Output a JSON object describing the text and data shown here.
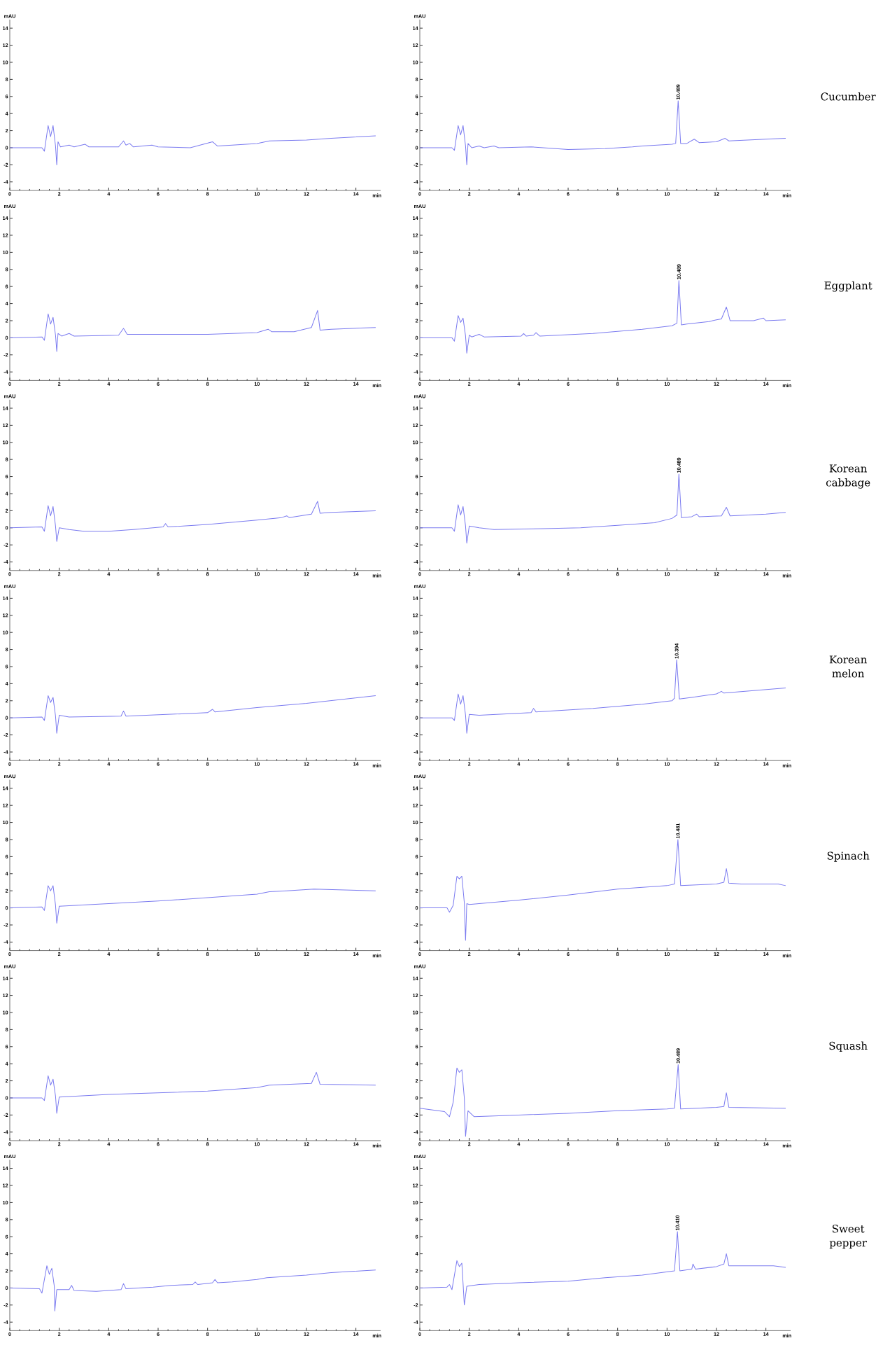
{
  "chart_data": [
    {
      "type": "line",
      "xlabel": "min",
      "ylabel": "mAU",
      "xlim": [
        0,
        15
      ],
      "ylim": [
        -5,
        15
      ],
      "xticks": [
        0,
        2,
        4,
        6,
        8,
        10,
        12,
        14
      ],
      "yticks": [
        -4,
        -2,
        0,
        2,
        4,
        6,
        8,
        10,
        12,
        14
      ],
      "x": [
        0,
        1.3,
        1.4,
        1.55,
        1.65,
        1.75,
        1.85,
        1.9,
        1.95,
        2.05,
        2.4,
        2.6,
        3.05,
        3.2,
        4.4,
        4.6,
        4.7,
        4.85,
        5,
        5.75,
        6,
        7.3,
        8.2,
        8.4,
        9,
        10,
        10.5,
        12,
        13,
        14.8
      ],
      "series": [
        {
          "color": "#7b7bf0",
          "values": [
            0,
            0,
            -0.4,
            2.6,
            1.3,
            2.6,
            0.2,
            -2,
            0.7,
            0.1,
            0.3,
            0.1,
            0.4,
            0.1,
            0.1,
            0.8,
            0.3,
            0.5,
            0.1,
            0.3,
            0.1,
            0,
            0.7,
            0.2,
            0.3,
            0.5,
            0.8,
            0.9,
            1.1,
            1.4
          ]
        }
      ]
    },
    {
      "type": "line",
      "xlabel": "min",
      "ylabel": "mAU",
      "xlim": [
        0,
        15
      ],
      "ylim": [
        -5,
        15
      ],
      "xticks": [
        0,
        2,
        4,
        6,
        8,
        10,
        12,
        14
      ],
      "yticks": [
        -4,
        -2,
        0,
        2,
        4,
        6,
        8,
        10,
        12,
        14
      ],
      "x": [
        0,
        1.3,
        1.4,
        1.55,
        1.65,
        1.75,
        1.85,
        1.9,
        1.95,
        2.1,
        2.4,
        2.6,
        3,
        3.2,
        4.5,
        6,
        7.5,
        8.6,
        9,
        10.2,
        10.35,
        10.45,
        10.55,
        10.8,
        11.1,
        11.3,
        12,
        12.35,
        12.5,
        14,
        14.8
      ],
      "series": [
        {
          "color": "#7b7bf0",
          "values": [
            0,
            0,
            -0.3,
            2.6,
            1.5,
            2.6,
            0.2,
            -2,
            0.5,
            0,
            0.2,
            0,
            0.2,
            0,
            0.1,
            -0.2,
            -0.1,
            0.1,
            0.2,
            0.4,
            0.5,
            5.5,
            0.5,
            0.5,
            1,
            0.6,
            0.7,
            1.1,
            0.8,
            1,
            1.1
          ]
        }
      ],
      "annotations": [
        {
          "text": "10.489",
          "x": 10.45,
          "y": 5.5
        },
        "Cucumber"
      ]
    },
    {
      "type": "line",
      "xlabel": "min",
      "ylabel": "mAU",
      "xlim": [
        0,
        15
      ],
      "ylim": [
        -5,
        15
      ],
      "xticks": [
        0,
        2,
        4,
        6,
        8,
        10,
        12,
        14
      ],
      "yticks": [
        -4,
        -2,
        0,
        2,
        4,
        6,
        8,
        10,
        12,
        14
      ],
      "x": [
        0,
        1.3,
        1.4,
        1.55,
        1.65,
        1.75,
        1.85,
        1.9,
        1.95,
        2.1,
        2.4,
        2.6,
        4.4,
        4.6,
        4.75,
        8,
        10,
        10.45,
        10.6,
        11.5,
        12.2,
        12.45,
        12.55,
        13,
        14.8
      ],
      "series": [
        {
          "color": "#7b7bf0",
          "values": [
            0,
            0.1,
            -0.3,
            2.8,
            1.6,
            2.4,
            0.3,
            -1.6,
            0.5,
            0.2,
            0.5,
            0.2,
            0.3,
            1.1,
            0.4,
            0.4,
            0.6,
            1,
            0.7,
            0.7,
            1.2,
            3.2,
            0.9,
            1,
            1.2
          ]
        }
      ]
    },
    {
      "type": "line",
      "xlabel": "min",
      "ylabel": "mAU",
      "xlim": [
        0,
        15
      ],
      "ylim": [
        -5,
        15
      ],
      "xticks": [
        0,
        2,
        4,
        6,
        8,
        10,
        12,
        14
      ],
      "yticks": [
        -4,
        -2,
        0,
        2,
        4,
        6,
        8,
        10,
        12,
        14
      ],
      "x": [
        0,
        1.3,
        1.4,
        1.55,
        1.65,
        1.75,
        1.85,
        1.9,
        2,
        2.1,
        2.4,
        2.6,
        4.1,
        4.2,
        4.3,
        4.6,
        4.7,
        4.85,
        7,
        9,
        10.2,
        10.4,
        10.48,
        10.58,
        10.8,
        11.7,
        12,
        12.2,
        12.4,
        12.55,
        13.5,
        13.9,
        14,
        14.8
      ],
      "series": [
        {
          "color": "#7b7bf0",
          "values": [
            0,
            0,
            -0.4,
            2.6,
            1.8,
            2.3,
            0.2,
            -1.8,
            0.3,
            0.1,
            0.4,
            0.1,
            0.2,
            0.5,
            0.2,
            0.3,
            0.6,
            0.2,
            0.5,
            1,
            1.4,
            1.7,
            6.7,
            1.5,
            1.6,
            1.9,
            2.1,
            2.2,
            3.6,
            2,
            2,
            2.3,
            2,
            2.1
          ]
        }
      ],
      "annotations": [
        {
          "text": "10.489",
          "x": 10.48,
          "y": 6.7
        },
        "Eggplant"
      ]
    },
    {
      "type": "line",
      "xlabel": "min",
      "ylabel": "mAU",
      "xlim": [
        0,
        15
      ],
      "ylim": [
        -5,
        15
      ],
      "xticks": [
        0,
        2,
        4,
        6,
        8,
        10,
        12,
        14
      ],
      "yticks": [
        -4,
        -2,
        0,
        2,
        4,
        6,
        8,
        10,
        12,
        14
      ],
      "x": [
        0,
        1.3,
        1.4,
        1.55,
        1.65,
        1.75,
        1.85,
        1.9,
        2,
        2.4,
        3,
        4,
        5,
        6.2,
        6.3,
        6.4,
        8,
        10,
        11,
        11.2,
        11.3,
        12.2,
        12.45,
        12.55,
        13,
        14.8
      ],
      "series": [
        {
          "color": "#7b7bf0",
          "values": [
            0,
            0.1,
            -0.4,
            2.6,
            1.4,
            2.5,
            0.2,
            -1.6,
            0,
            -0.2,
            -0.4,
            -0.4,
            -0.2,
            0.1,
            0.5,
            0.1,
            0.4,
            0.9,
            1.2,
            1.4,
            1.2,
            1.6,
            3.1,
            1.7,
            1.8,
            2
          ]
        }
      ]
    },
    {
      "type": "line",
      "xlabel": "min",
      "ylabel": "mAU",
      "xlim": [
        0,
        15
      ],
      "ylim": [
        -5,
        15
      ],
      "xticks": [
        0,
        2,
        4,
        6,
        8,
        10,
        12,
        14
      ],
      "yticks": [
        -4,
        -2,
        0,
        2,
        4,
        6,
        8,
        10,
        12,
        14
      ],
      "x": [
        0,
        1.3,
        1.4,
        1.55,
        1.65,
        1.75,
        1.85,
        1.9,
        2,
        2.4,
        3,
        5,
        6.5,
        8,
        9.5,
        10.2,
        10.4,
        10.48,
        10.58,
        11,
        11.2,
        11.3,
        12.2,
        12.4,
        12.55,
        14,
        14.8
      ],
      "series": [
        {
          "color": "#7b7bf0",
          "values": [
            0,
            0,
            -0.4,
            2.7,
            1.5,
            2.5,
            0.2,
            -1.8,
            0.2,
            0,
            -0.2,
            -0.1,
            0,
            0.3,
            0.6,
            1.1,
            1.5,
            6.3,
            1.2,
            1.3,
            1.6,
            1.3,
            1.4,
            2.4,
            1.4,
            1.6,
            1.8
          ]
        }
      ],
      "annotations": [
        {
          "text": "10.489",
          "x": 10.48,
          "y": 6.3
        },
        "Korean cabbage"
      ]
    },
    {
      "type": "line",
      "xlabel": "min",
      "ylabel": "mAU",
      "xlim": [
        0,
        15
      ],
      "ylim": [
        -5,
        15
      ],
      "xticks": [
        0,
        2,
        4,
        6,
        8,
        10,
        12,
        14
      ],
      "yticks": [
        -4,
        -2,
        0,
        2,
        4,
        6,
        8,
        10,
        12,
        14
      ],
      "x": [
        0,
        1.3,
        1.4,
        1.55,
        1.65,
        1.75,
        1.85,
        1.9,
        2,
        2.4,
        4.5,
        4.6,
        4.7,
        8,
        8.2,
        8.3,
        10,
        12,
        14.8
      ],
      "series": [
        {
          "color": "#7b7bf0",
          "values": [
            0,
            0.1,
            -0.3,
            2.6,
            1.8,
            2.4,
            0.2,
            -1.8,
            0.3,
            0.1,
            0.2,
            0.8,
            0.2,
            0.6,
            1,
            0.7,
            1.2,
            1.7,
            2.6
          ]
        }
      ]
    },
    {
      "type": "line",
      "xlabel": "min",
      "ylabel": "mAU",
      "xlim": [
        0,
        15
      ],
      "ylim": [
        -5,
        15
      ],
      "xticks": [
        0,
        2,
        4,
        6,
        8,
        10,
        12,
        14
      ],
      "yticks": [
        -4,
        -2,
        0,
        2,
        4,
        6,
        8,
        10,
        12,
        14
      ],
      "x": [
        0,
        1.3,
        1.4,
        1.55,
        1.65,
        1.75,
        1.85,
        1.9,
        2,
        2.4,
        4.5,
        4.6,
        4.7,
        7,
        9,
        10.2,
        10.3,
        10.39,
        10.5,
        11,
        12,
        12.2,
        12.3,
        14.8
      ],
      "series": [
        {
          "color": "#7b7bf0",
          "values": [
            0,
            0,
            -0.3,
            2.8,
            1.6,
            2.6,
            0.3,
            -1.8,
            0.4,
            0.3,
            0.6,
            1.1,
            0.7,
            1.1,
            1.6,
            2,
            2.3,
            6.8,
            2.2,
            2.4,
            2.8,
            3.1,
            2.9,
            3.5
          ]
        }
      ],
      "annotations": [
        {
          "text": "10.394",
          "x": 10.39,
          "y": 6.8
        },
        "Korean melon"
      ]
    },
    {
      "type": "line",
      "xlabel": "min",
      "ylabel": "mAU",
      "xlim": [
        0,
        15
      ],
      "ylim": [
        -5,
        15
      ],
      "xticks": [
        0,
        2,
        4,
        6,
        8,
        10,
        12,
        14
      ],
      "yticks": [
        -4,
        -2,
        0,
        2,
        4,
        6,
        8,
        10,
        12,
        14
      ],
      "x": [
        0,
        1.3,
        1.4,
        1.55,
        1.65,
        1.75,
        1.85,
        1.9,
        2,
        4,
        6,
        8,
        10,
        10.5,
        11.2,
        12.3,
        14.8
      ],
      "series": [
        {
          "color": "#7b7bf0",
          "values": [
            0,
            0.1,
            -0.3,
            2.6,
            2,
            2.6,
            0.3,
            -1.8,
            0.2,
            0.5,
            0.8,
            1.2,
            1.6,
            1.9,
            2,
            2.2,
            2
          ]
        }
      ]
    },
    {
      "type": "line",
      "xlabel": "min",
      "ylabel": "mAU",
      "xlim": [
        0,
        15
      ],
      "ylim": [
        -5,
        15
      ],
      "xticks": [
        0,
        2,
        4,
        6,
        8,
        10,
        12,
        14
      ],
      "yticks": [
        -4,
        -2,
        0,
        2,
        4,
        6,
        8,
        10,
        12,
        14
      ],
      "x": [
        0,
        1.1,
        1.2,
        1.35,
        1.5,
        1.6,
        1.7,
        1.8,
        1.85,
        1.9,
        2,
        4,
        6,
        8,
        10,
        10.3,
        10.44,
        10.55,
        12,
        12.3,
        12.4,
        12.5,
        13,
        14.5,
        14.8
      ],
      "series": [
        {
          "color": "#7b7bf0",
          "values": [
            0,
            0,
            -0.5,
            0.3,
            3.7,
            3.4,
            3.7,
            0.6,
            -3.8,
            0.5,
            0.4,
            0.9,
            1.5,
            2.2,
            2.6,
            2.8,
            8,
            2.6,
            2.8,
            3,
            4.6,
            2.9,
            2.8,
            2.8,
            2.6
          ]
        }
      ],
      "annotations": [
        {
          "text": "10.481",
          "x": 10.44,
          "y": 8
        },
        "Spinach"
      ]
    },
    {
      "type": "line",
      "xlabel": "min",
      "ylabel": "mAU",
      "xlim": [
        0,
        15
      ],
      "ylim": [
        -5,
        15
      ],
      "xticks": [
        0,
        2,
        4,
        6,
        8,
        10,
        12,
        14
      ],
      "yticks": [
        -4,
        -2,
        0,
        2,
        4,
        6,
        8,
        10,
        12,
        14
      ],
      "x": [
        0,
        1.3,
        1.4,
        1.55,
        1.65,
        1.75,
        1.85,
        1.9,
        2,
        4,
        8,
        10,
        10.5,
        12.2,
        12.4,
        12.55,
        14.8
      ],
      "series": [
        {
          "color": "#7b7bf0",
          "values": [
            0,
            0,
            -0.3,
            2.6,
            1.5,
            2.2,
            0.2,
            -1.8,
            0.1,
            0.4,
            0.8,
            1.2,
            1.5,
            1.7,
            3,
            1.6,
            1.5
          ]
        }
      ]
    },
    {
      "type": "line",
      "xlabel": "min",
      "ylabel": "mAU",
      "xlim": [
        0,
        15
      ],
      "ylim": [
        -5,
        15
      ],
      "xticks": [
        0,
        2,
        4,
        6,
        8,
        10,
        12,
        14
      ],
      "yticks": [
        -4,
        -2,
        0,
        2,
        4,
        6,
        8,
        10,
        12,
        14
      ],
      "x": [
        0,
        1,
        1.2,
        1.35,
        1.5,
        1.6,
        1.7,
        1.8,
        1.85,
        1.95,
        2.2,
        4,
        6,
        8,
        10,
        10.3,
        10.45,
        10.55,
        12,
        12.3,
        12.4,
        12.5,
        14.8
      ],
      "series": [
        {
          "color": "#7b7bf0",
          "values": [
            -1.2,
            -1.6,
            -2.2,
            -0.5,
            3.5,
            3,
            3.3,
            0,
            -4.5,
            -1.5,
            -2.2,
            -2,
            -1.8,
            -1.5,
            -1.3,
            -1.2,
            3.9,
            -1.3,
            -1.1,
            -1,
            0.6,
            -1.1,
            -1.2
          ]
        }
      ],
      "annotations": [
        {
          "text": "10.489",
          "x": 10.45,
          "y": 3.9
        },
        "Squash"
      ]
    },
    {
      "type": "line",
      "xlabel": "min",
      "ylabel": "mAU",
      "xlim": [
        0,
        15
      ],
      "ylim": [
        -5,
        15
      ],
      "xticks": [
        0,
        2,
        4,
        6,
        8,
        10,
        12,
        14
      ],
      "yticks": [
        -4,
        -2,
        0,
        2,
        4,
        6,
        8,
        10,
        12,
        14
      ],
      "x": [
        0,
        1.2,
        1.3,
        1.5,
        1.6,
        1.7,
        1.8,
        1.82,
        1.9,
        2.4,
        2.5,
        2.6,
        3.5,
        4.5,
        4.6,
        4.7,
        5.8,
        6.5,
        7.4,
        7.5,
        7.6,
        8.2,
        8.3,
        8.4,
        9,
        10,
        10.4,
        12,
        13,
        14.8
      ],
      "series": [
        {
          "color": "#7b7bf0",
          "values": [
            0,
            -0.1,
            -0.6,
            2.6,
            1.6,
            2.3,
            0.2,
            -2.7,
            -0.2,
            -0.2,
            0.3,
            -0.3,
            -0.4,
            -0.2,
            0.5,
            -0.1,
            0.1,
            0.3,
            0.4,
            0.7,
            0.4,
            0.6,
            1,
            0.6,
            0.7,
            1,
            1.2,
            1.5,
            1.8,
            2.1
          ]
        }
      ]
    },
    {
      "type": "line",
      "xlabel": "min",
      "ylabel": "mAU",
      "xlim": [
        0,
        15
      ],
      "ylim": [
        -5,
        15
      ],
      "xticks": [
        0,
        2,
        4,
        6,
        8,
        10,
        12,
        14
      ],
      "yticks": [
        -4,
        -2,
        0,
        2,
        4,
        6,
        8,
        10,
        12,
        14
      ],
      "x": [
        0,
        1.1,
        1.2,
        1.3,
        1.5,
        1.6,
        1.7,
        1.75,
        1.8,
        1.9,
        2.4,
        4,
        6,
        7.5,
        9,
        10.3,
        10.42,
        10.52,
        11,
        11.05,
        11.15,
        12,
        12.3,
        12.4,
        12.5,
        14.3,
        14.8
      ],
      "series": [
        {
          "color": "#7b7bf0",
          "values": [
            0,
            0.1,
            0.4,
            -0.2,
            3.2,
            2.5,
            2.9,
            0.5,
            -2,
            0.2,
            0.4,
            0.6,
            0.8,
            1.2,
            1.5,
            2,
            6.6,
            2,
            2.2,
            2.8,
            2.2,
            2.5,
            2.8,
            4,
            2.6,
            2.6,
            2.4
          ]
        }
      ],
      "annotations": [
        {
          "text": "10.410",
          "x": 10.42,
          "y": 6.6
        },
        "Sweet pepper"
      ]
    }
  ]
}
